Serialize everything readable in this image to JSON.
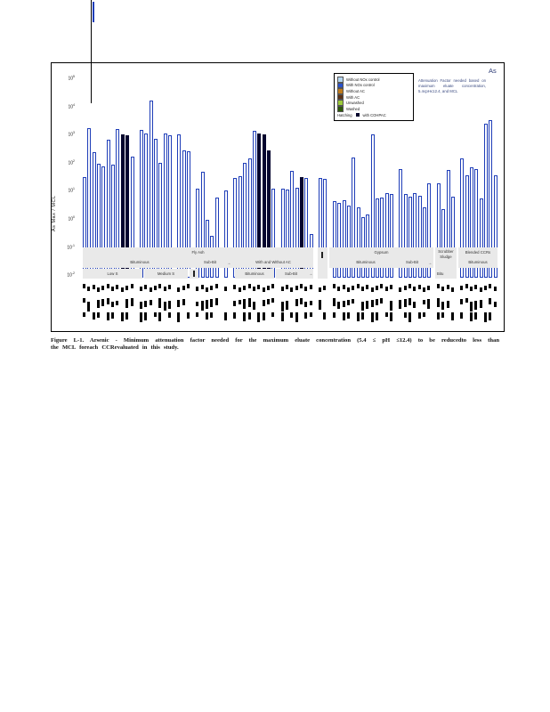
{
  "page": {
    "figure_caption": {
      "line1": "Figure L-1.  Arsenic  - Minimum  attenuation  factor  needed  for  the  maximum  eluate  concentration  (5.4 ≤ pH ≤12.4)  to  be  reducedto  less  than",
      "line2": "the MCL  foreach  CCRevaluated  in this study."
    }
  },
  "chart_data": {
    "type": "bar",
    "title": "",
    "corner_label": "As",
    "ylabel": "As Max / MCL",
    "y_scale": "log",
    "ylim": [
      0.01,
      100000
    ],
    "y_tick_exponents": [
      5,
      4,
      3,
      2,
      1,
      0,
      -1,
      -2
    ],
    "grid": false,
    "annotation": "Attenuation Factor needed based on maximum eluate concentration, 5.4≤pH≤12.4, and MCL",
    "legend_position": "top-right-inside",
    "legend": [
      {
        "label": "Without NOx control",
        "color": "#b5d6f0"
      },
      {
        "label": "With NOx control",
        "color": "#2a52cc"
      },
      {
        "label": "Without AC",
        "color": "#c07a1a"
      },
      {
        "label": "With AC",
        "color": "#5c3317"
      },
      {
        "label": "Unwashed",
        "color": "#9ccb3a"
      },
      {
        "label": "Washed",
        "color": "#2f5a0a"
      }
    ],
    "legend_note": {
      "prefix": "Hatching",
      "symbol_color": "#05052e",
      "suffix": "with COHPAC"
    },
    "bar_style": {
      "outline_color": "#1e3db8",
      "fill": "#ffffff",
      "hatched_fill": "#05052e"
    },
    "bands": {
      "fly_ash": "Fly Ash",
      "bituminous": "Bituminous",
      "sub_bit": "Sub-Bit",
      "arrow": "→",
      "with_and_without_ac": "With  and  Without  AC",
      "low_s": "Low  S",
      "medium_s": "Medium  S",
      "ac_bituminous": "Bituminous",
      "ac_sub_bit": "Sub-Bit",
      "gypsum": "Gypsum",
      "gyp_bituminous": "Bituminous",
      "gyp_sub_bit": "Sub-Bit",
      "scrubber_line1": "Scrubber",
      "scrubber_line2": "Sludge",
      "scrubber_bitu": "Bitu",
      "blended_ccrs": "Blended   CCRs",
      "blended_bituminous": "Bituminous"
    },
    "x_tick_labels_legible": false,
    "groups": [
      {
        "section": "Fly Ash",
        "subsection": "Bituminous",
        "label": "Low S",
        "values": [
          30,
          1700,
          230,
          95,
          75,
          660,
          85,
          1600,
          1050,
          950,
          160
        ],
        "hatched": [
          8,
          9
        ]
      },
      {
        "section": "Fly Ash",
        "subsection": "Bituminous",
        "label": "Medium S",
        "values": [
          1500,
          1100,
          16000,
          700,
          100,
          1100,
          950
        ],
        "hatched": []
      },
      {
        "section": "Fly Ash",
        "subsection": "Bituminous",
        "label": "",
        "values": [
          1000,
          280,
          250
        ],
        "hatched": []
      },
      {
        "section": "Fly Ash",
        "subsection": "Sub-Bit",
        "label": "",
        "values": [
          12,
          47,
          0.9,
          0.25,
          5.6
        ],
        "hatched": []
      },
      {
        "section": "Fly Ash",
        "subsection": "",
        "label": "",
        "values": [
          10
        ],
        "hatched": []
      },
      {
        "section": "Fly Ash",
        "subsection": "With and Without AC",
        "label": "Bituminous",
        "values": [
          29,
          32,
          100,
          140,
          1400,
          1100,
          1050,
          270,
          12
        ],
        "hatched": [
          5,
          6,
          7
        ]
      },
      {
        "section": "Fly Ash",
        "subsection": "With and Without AC",
        "label": "Sub-Bit",
        "values": [
          12,
          11,
          52,
          13,
          30,
          28,
          0.3
        ],
        "hatched": [
          4
        ]
      },
      {
        "section": "",
        "subsection": "",
        "label": "",
        "values": [
          28,
          26
        ],
        "hatched": []
      },
      {
        "section": "Gypsum",
        "subsection": "Bituminous",
        "label": "",
        "values": [
          4.2,
          3.6,
          4.8,
          3.0,
          150,
          2.6,
          1.2,
          1.4,
          1000,
          5.2,
          5.6,
          8.4,
          7.6
        ],
        "hatched": []
      },
      {
        "section": "Gypsum",
        "subsection": "Sub-Bit",
        "label": "",
        "values": [
          60,
          7.5,
          6.0,
          8.5,
          6.6,
          2.5,
          19
        ],
        "hatched": []
      },
      {
        "section": "Scrubber Sludge",
        "subsection": "Bitu",
        "label": "",
        "values": [
          19,
          2.2,
          56,
          6.3
        ],
        "hatched": []
      },
      {
        "section": "Blended CCRs",
        "subsection": "Bituminous",
        "label": "",
        "values": [
          140,
          35,
          68,
          59,
          5.5,
          2400,
          3200,
          35
        ],
        "hatched": []
      }
    ]
  }
}
